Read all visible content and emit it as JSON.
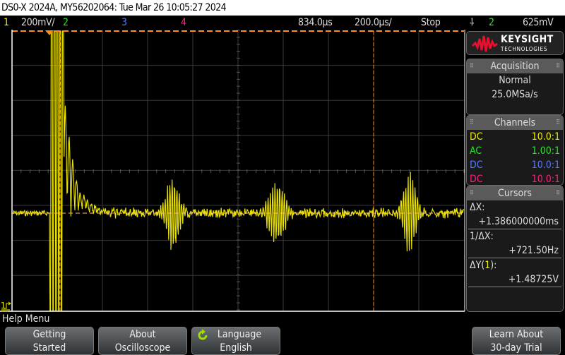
{
  "title": "DS0-X 2024A, MY56202064: Tue Mar 26 10:05:27 2024",
  "status": {
    "ch1_num": "1",
    "ch1_scale": "200mV/",
    "ch2_num": "2",
    "ch3_num": "3",
    "ch4_num": "4",
    "time_delay": "834.0µs",
    "time_scale": "200.0µs/",
    "run_state": "Stop",
    "trigger_source": "2",
    "trigger_level": "625mV"
  },
  "brand": {
    "name": "KEYSIGHT",
    "sub": "TECHNOLOGIES"
  },
  "acquisition": {
    "header": "Acquisition",
    "mode": "Normal",
    "rate": "25.0MSa/s"
  },
  "channels": {
    "header": "Channels",
    "items": [
      {
        "coupling": "DC",
        "probe": "10.0:1",
        "color": "#f0f000"
      },
      {
        "coupling": "AC",
        "probe": "1.00:1",
        "color": "#30e030"
      },
      {
        "coupling": "DC",
        "probe": "10.0:1",
        "color": "#5a78ff"
      },
      {
        "coupling": "DC",
        "probe": "10.0:1",
        "color": "#ff2080"
      }
    ]
  },
  "cursors": {
    "header": "Cursors",
    "dx_label": "ΔX:",
    "dx_value": "+1.386000000ms",
    "inv_label": "1/ΔX:",
    "inv_value": "+721.50Hz",
    "dy_label_pre": "ΔY(",
    "dy_ch": "1",
    "dy_label_post": "):",
    "dy_value": "+1.48725V"
  },
  "ground_marker": "1",
  "help_menu": "Help Menu",
  "buttons": [
    {
      "line1": "Getting",
      "line2": "Started"
    },
    {
      "line1": "About",
      "line2": "Oscilloscope"
    },
    {
      "line1": "Language",
      "line2": "English",
      "icon": "cycle-icon"
    },
    {
      "line1": "Learn About",
      "line2": "30-day Trial"
    }
  ],
  "colors": {
    "ch1": "#f0f000",
    "ch2": "#30e030",
    "ch3": "#5a78ff",
    "ch4": "#ff2080",
    "cursor": "#ff8c1a",
    "logo": "#e8102e"
  }
}
